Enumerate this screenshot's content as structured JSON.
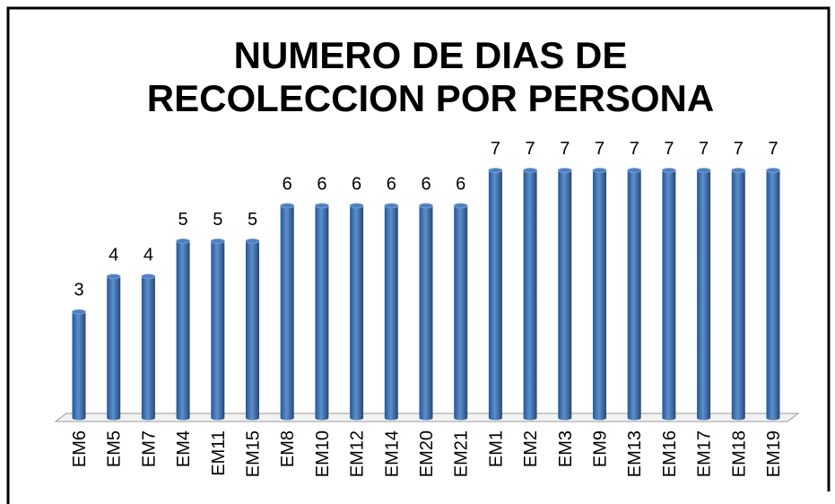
{
  "chart_data": {
    "type": "bar",
    "title": "NUMERO DE DIAS DE RECOLECCION POR PERSONA",
    "categories": [
      "EM6",
      "EM5",
      "EM7",
      "EM4",
      "EM11",
      "EM15",
      "EM8",
      "EM10",
      "EM12",
      "EM14",
      "EM20",
      "EM21",
      "EM1",
      "EM2",
      "EM3",
      "EM9",
      "EM13",
      "EM16",
      "EM17",
      "EM18",
      "EM19"
    ],
    "values": [
      3,
      4,
      4,
      5,
      5,
      5,
      6,
      6,
      6,
      6,
      6,
      6,
      7,
      7,
      7,
      7,
      7,
      7,
      7,
      7,
      7
    ],
    "color": "#4f81bd",
    "ylim": [
      0,
      7
    ]
  }
}
